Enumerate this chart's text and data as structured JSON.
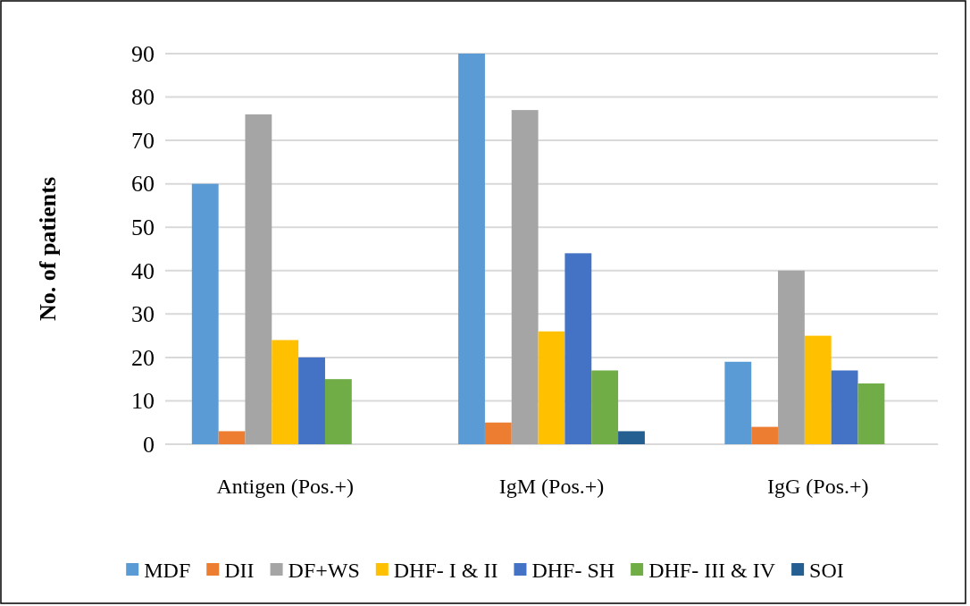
{
  "chart_data": {
    "type": "bar",
    "ylabel": "No. of patients",
    "categories": [
      "Antigen (Pos.+)",
      "IgM (Pos.+)",
      "IgG (Pos.+)"
    ],
    "series": [
      {
        "name": "MDF",
        "color": "#5b9bd5",
        "values": [
          60,
          90,
          19
        ]
      },
      {
        "name": "DII",
        "color": "#ed7d31",
        "values": [
          3,
          5,
          4
        ]
      },
      {
        "name": "DF+WS",
        "color": "#a5a5a5",
        "values": [
          76,
          77,
          40
        ]
      },
      {
        "name": "DHF- I & II",
        "color": "#ffc000",
        "values": [
          24,
          26,
          25
        ]
      },
      {
        "name": "DHF- SH",
        "color": "#4472c4",
        "values": [
          20,
          44,
          17
        ]
      },
      {
        "name": "DHF- III & IV",
        "color": "#70ad47",
        "values": [
          15,
          17,
          14
        ]
      },
      {
        "name": "SOI",
        "color": "#255e91",
        "values": [
          0,
          3,
          0
        ]
      }
    ],
    "ylim": [
      0,
      90
    ],
    "yticks": [
      0,
      10,
      20,
      30,
      40,
      50,
      60,
      70,
      80,
      90
    ],
    "grid": "y",
    "legend": "bottom"
  }
}
